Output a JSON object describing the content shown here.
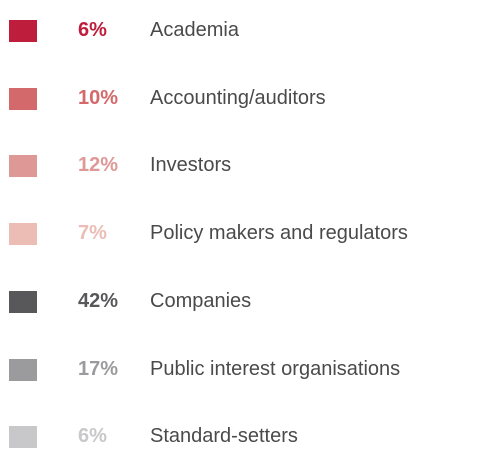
{
  "items": [
    {
      "percent": "6%",
      "label": "Academia",
      "color": "#be1e3c"
    },
    {
      "percent": "10%",
      "label": "Accounting/auditors",
      "color": "#d4696b"
    },
    {
      "percent": "12%",
      "label": "Investors",
      "color": "#de9896"
    },
    {
      "percent": "7%",
      "label": "Policy makers and regulators",
      "color": "#ebbdb5"
    },
    {
      "percent": "42%",
      "label": "Companies",
      "color": "#58585a"
    },
    {
      "percent": "17%",
      "label": "Public interest organisations",
      "color": "#9b9b9d"
    },
    {
      "percent": "6%",
      "label": "Standard-setters",
      "color": "#c8c8ca"
    }
  ]
}
